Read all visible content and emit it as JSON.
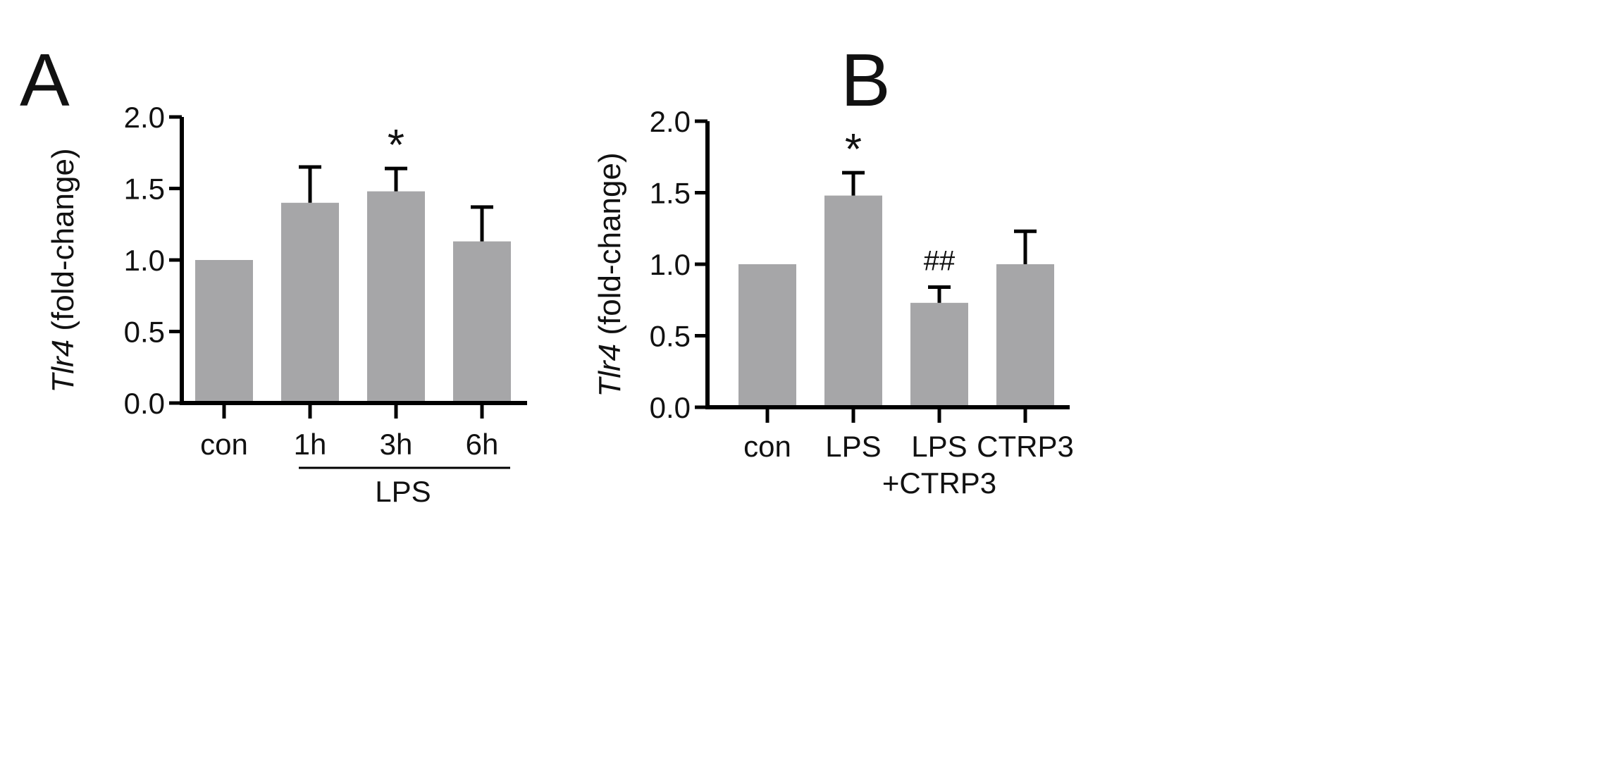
{
  "chart_data": [
    {
      "panel_label": "A",
      "type": "bar",
      "categories": [
        "con",
        "1h",
        "3h",
        "6h"
      ],
      "values": [
        1.0,
        1.4,
        1.48,
        1.13
      ],
      "error_upper": [
        0.0,
        0.25,
        0.16,
        0.24
      ],
      "annotations": [
        "",
        "",
        "*",
        ""
      ],
      "group_label": "LPS",
      "group_span": [
        1,
        3
      ],
      "ylabel_italic": "Tlr4",
      "ylabel_rest": " (fold-change)",
      "ylim": [
        0,
        2.0
      ],
      "yticks": [
        "0.0",
        "0.5",
        "1.0",
        "1.5",
        "2.0"
      ],
      "ytick_values": [
        0,
        0.5,
        1.0,
        1.5,
        2.0
      ],
      "bar_color": "#a6a6a8",
      "axis_color": "#000000",
      "grid": false
    },
    {
      "panel_label": "B",
      "type": "bar",
      "categories": [
        "con",
        "LPS",
        "LPS\n+CTRP3",
        "CTRP3"
      ],
      "category_lines": [
        [
          "con"
        ],
        [
          "LPS"
        ],
        [
          "LPS",
          "+CTRP3"
        ],
        [
          "CTRP3"
        ]
      ],
      "values": [
        1.0,
        1.48,
        0.73,
        1.0
      ],
      "error_upper": [
        0.0,
        0.16,
        0.11,
        0.23
      ],
      "annotations": [
        "",
        "*",
        "##",
        ""
      ],
      "ylabel_italic": "Tlr4",
      "ylabel_rest": " (fold-change)",
      "ylim": [
        0,
        2.0
      ],
      "yticks": [
        "0.0",
        "0.5",
        "1.0",
        "1.5",
        "2.0"
      ],
      "ytick_values": [
        0,
        0.5,
        1.0,
        1.5,
        2.0
      ],
      "bar_color": "#a6a6a8",
      "axis_color": "#000000",
      "grid": false
    }
  ]
}
